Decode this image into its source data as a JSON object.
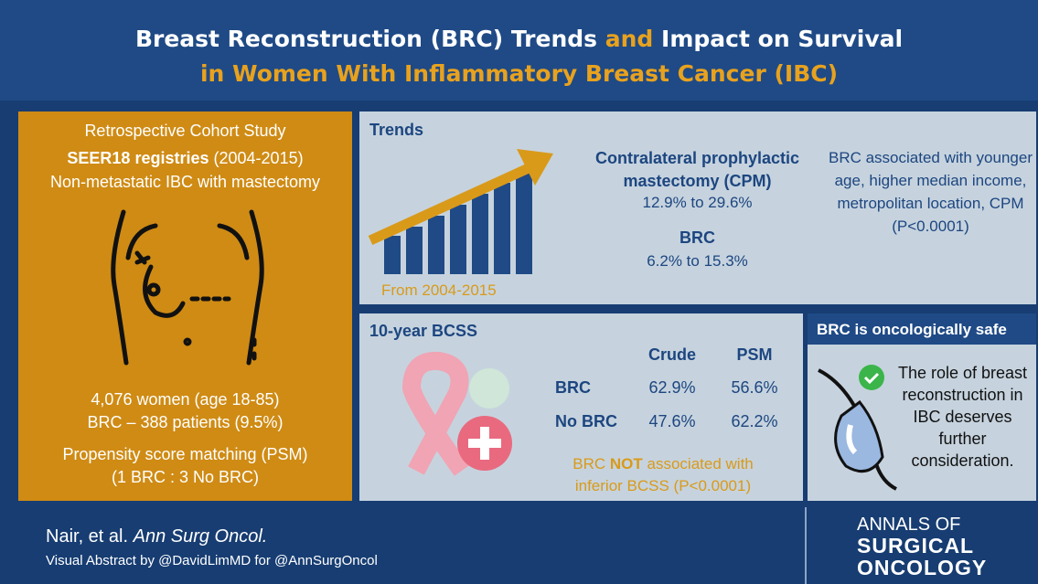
{
  "header": {
    "title_part1": "Breast Reconstruction (BRC) Trends",
    "title_part2": "and",
    "title_part3": "Impact on Survival",
    "title_line2": "in Women With Inflammatory Breast Cancer (IBC)"
  },
  "cohort": {
    "study": "Retrospective Cohort Study",
    "source_bold": "SEER18 registries",
    "source_years": "(2004-2015)",
    "population": "Non-metastatic IBC with mastectomy",
    "women": "4,076 women (age 18-85)",
    "brc": "BRC – 388 patients (9.5%)",
    "psm": "Propensity score matching (PSM)",
    "ratio": "(1 BRC : 3 No BRC)"
  },
  "trends": {
    "title": "Trends",
    "period": "From 2004-2015",
    "cpm_label": "Contralateral prophylactic mastectomy (CPM)",
    "cpm_change": "12.9% to 29.6%",
    "brc_label": "BRC",
    "brc_change": "6.2% to 15.3%",
    "association": "BRC associated with younger age, higher median income, metropolitan location, CPM (P<0.0001)"
  },
  "bcss": {
    "title": "10-year BCSS",
    "columns": [
      "Crude",
      "PSM"
    ],
    "rows": [
      {
        "label": "BRC",
        "values": [
          "62.9%",
          "56.6%"
        ]
      },
      {
        "label": "No BRC",
        "values": [
          "47.6%",
          "62.2%"
        ]
      }
    ],
    "note_part1": "BRC",
    "note_bold": "NOT",
    "note_part2": "associated with inferior BCSS (P<0.0001)"
  },
  "safety": {
    "title": "BRC is oncologically safe",
    "text": "The role of breast reconstruction in IBC deserves further consideration."
  },
  "footer": {
    "authors": "Nair, et al.",
    "journal": "Ann Surg Oncol.",
    "credit": "Visual Abstract by @DavidLimMD for @AnnSurgOncol",
    "logo_line1": "ANNALS OF",
    "logo_line2": "SURGICAL",
    "logo_line3": "ONCOLOGY"
  }
}
